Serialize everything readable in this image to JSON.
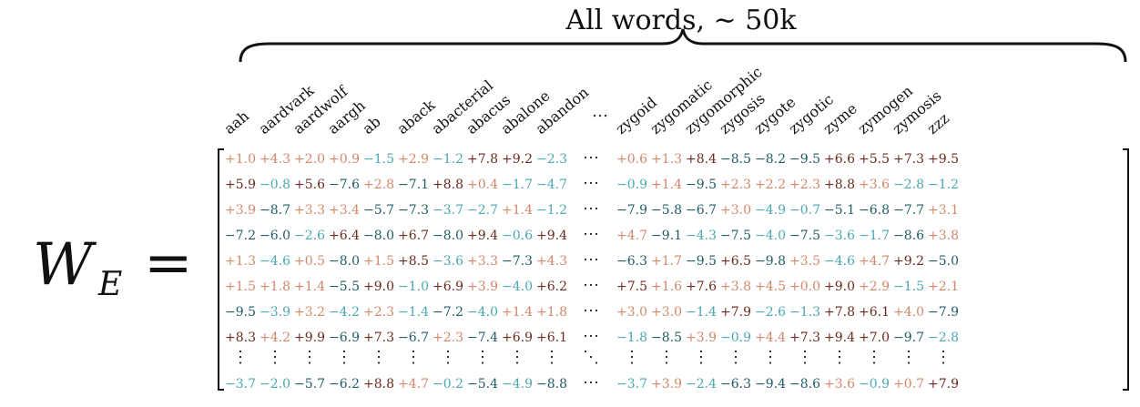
{
  "title": "All words,  ∼ 50k",
  "lhs": {
    "symbol": "W",
    "subscript": "E",
    "equals": "="
  },
  "columns_left": [
    "aah",
    "aardvark",
    "aardwolf",
    "aargh",
    "ab",
    "aback",
    "abacterial",
    "abacus",
    "abalone",
    "abandon"
  ],
  "columns_right": [
    "zygoid",
    "zygomatic",
    "zygomorphic",
    "zygosis",
    "zygote",
    "zygotic",
    "zyme",
    "zymogen",
    "zymosis",
    "zzz"
  ],
  "ellipsis": "…",
  "row_ellipsis": "⋯",
  "col_ellipsis": "⋮",
  "diag_ellipsis": "⋱",
  "colors": {
    "pos_strong": "#6b2a1e",
    "pos_light": "#d2876a",
    "neg_strong": "#1f5c66",
    "neg_light": "#4aa8b0"
  },
  "rows": [
    {
      "left": [
        1.0,
        4.3,
        2.0,
        0.9,
        -1.5,
        2.9,
        -1.2,
        7.8,
        9.2,
        -2.3
      ],
      "right": [
        0.6,
        1.3,
        8.4,
        -8.5,
        -8.2,
        -9.5,
        6.6,
        5.5,
        7.3,
        9.5
      ]
    },
    {
      "left": [
        5.9,
        -0.8,
        5.6,
        -7.6,
        2.8,
        -7.1,
        8.8,
        0.4,
        -1.7,
        -4.7
      ],
      "right": [
        -0.9,
        1.4,
        -9.5,
        2.3,
        2.2,
        2.3,
        8.8,
        3.6,
        -2.8,
        -1.2
      ]
    },
    {
      "left": [
        3.9,
        -8.7,
        3.3,
        3.4,
        -5.7,
        -7.3,
        -3.7,
        -2.7,
        1.4,
        -1.2
      ],
      "right": [
        -7.9,
        -5.8,
        -6.7,
        3.0,
        -4.9,
        -0.7,
        -5.1,
        -6.8,
        -7.7,
        3.1
      ]
    },
    {
      "left": [
        -7.2,
        -6.0,
        -2.6,
        6.4,
        -8.0,
        6.7,
        -8.0,
        9.4,
        -0.6,
        9.4
      ],
      "right": [
        4.7,
        -9.1,
        -4.3,
        -7.5,
        -4.0,
        -7.5,
        -3.6,
        -1.7,
        -8.6,
        3.8
      ]
    },
    {
      "left": [
        1.3,
        -4.6,
        0.5,
        -8.0,
        1.5,
        8.5,
        -3.6,
        3.3,
        -7.3,
        4.3
      ],
      "right": [
        -6.3,
        1.7,
        -9.5,
        6.5,
        -9.8,
        3.5,
        -4.6,
        4.7,
        9.2,
        -5.0
      ]
    },
    {
      "left": [
        1.5,
        1.8,
        1.4,
        -5.5,
        9.0,
        -1.0,
        6.9,
        3.9,
        -4.0,
        6.2
      ],
      "right": [
        7.5,
        1.6,
        7.6,
        3.8,
        4.5,
        0.0,
        9.0,
        2.9,
        -1.5,
        2.1
      ]
    },
    {
      "left": [
        -9.5,
        -3.9,
        3.2,
        -4.2,
        2.3,
        -1.4,
        -7.2,
        -4.0,
        1.4,
        1.8
      ],
      "right": [
        3.0,
        3.0,
        -1.4,
        7.9,
        -2.6,
        -1.3,
        7.8,
        6.1,
        4.0,
        -7.9
      ]
    },
    {
      "left": [
        8.3,
        4.2,
        9.9,
        -6.9,
        7.3,
        -6.7,
        2.3,
        -7.4,
        6.9,
        6.1
      ],
      "right": [
        -1.8,
        -8.5,
        3.9,
        -0.9,
        4.4,
        7.3,
        9.4,
        7.0,
        -9.7,
        -2.8
      ]
    }
  ],
  "last_row": {
    "left": [
      -3.7,
      -2.0,
      -5.7,
      -6.2,
      8.8,
      4.7,
      -0.2,
      -5.4,
      -4.9,
      -8.8
    ],
    "right": [
      -3.7,
      3.9,
      -2.4,
      -6.3,
      -9.4,
      -8.6,
      3.6,
      -0.9,
      0.7,
      7.9
    ]
  }
}
